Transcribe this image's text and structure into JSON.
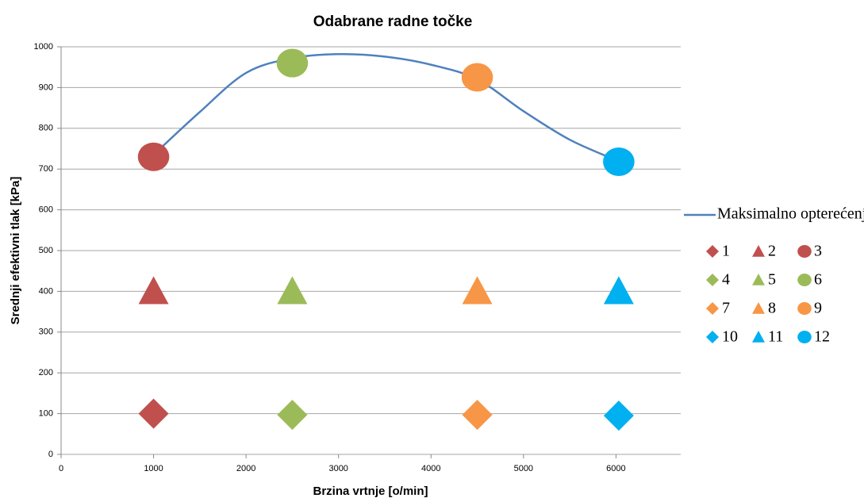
{
  "chart_data": {
    "type": "scatter",
    "title": "Odabrane radne točke",
    "x_label": "Brzina vrtnje [o/min]",
    "y_label": "Srednji efektivni tlak [kPa]",
    "xlim": [
      0,
      6700
    ],
    "xticks": [
      0,
      1000,
      2000,
      3000,
      4000,
      5000,
      6000
    ],
    "ylim": [
      0,
      1000
    ],
    "yticks": [
      0,
      100,
      200,
      300,
      400,
      500,
      600,
      700,
      800,
      900,
      1000
    ],
    "grid": true,
    "legend": "right",
    "series": [
      {
        "name": "Maksimalno opterećenje",
        "color": "#4f81bd",
        "marker": "line",
        "x": [
          1000,
          1500,
          2000,
          2500,
          3000,
          3500,
          4000,
          4500,
          5000,
          5500,
          6000
        ],
        "values": [
          735,
          840,
          936,
          972,
          982,
          976,
          956,
          920,
          842,
          772,
          722
        ]
      },
      {
        "name": "1",
        "color": "#c0504d",
        "marker": "diamond",
        "x": [
          1000
        ],
        "values": [
          100
        ]
      },
      {
        "name": "2",
        "color": "#c0504d",
        "marker": "triangle",
        "x": [
          1000
        ],
        "values": [
          400
        ]
      },
      {
        "name": "3",
        "color": "#c0504d",
        "marker": "circle",
        "x": [
          1000
        ],
        "values": [
          730
        ]
      },
      {
        "name": "4",
        "color": "#9bbb59",
        "marker": "diamond",
        "x": [
          2500
        ],
        "values": [
          97
        ]
      },
      {
        "name": "5",
        "color": "#9bbb59",
        "marker": "triangle",
        "x": [
          2500
        ],
        "values": [
          400
        ]
      },
      {
        "name": "6",
        "color": "#9bbb59",
        "marker": "circle",
        "x": [
          2500
        ],
        "values": [
          960
        ]
      },
      {
        "name": "7",
        "color": "#f79646",
        "marker": "diamond",
        "x": [
          4500
        ],
        "values": [
          97
        ]
      },
      {
        "name": "8",
        "color": "#f79646",
        "marker": "triangle",
        "x": [
          4500
        ],
        "values": [
          400
        ]
      },
      {
        "name": "9",
        "color": "#f79646",
        "marker": "circle",
        "x": [
          4500
        ],
        "values": [
          925
        ]
      },
      {
        "name": "10",
        "color": "#00b0f0",
        "marker": "diamond",
        "x": [
          6030
        ],
        "values": [
          95
        ]
      },
      {
        "name": "11",
        "color": "#00b0f0",
        "marker": "triangle",
        "x": [
          6030
        ],
        "values": [
          400
        ]
      },
      {
        "name": "12",
        "color": "#00b0f0",
        "marker": "circle",
        "x": [
          6030
        ],
        "values": [
          718
        ]
      }
    ]
  }
}
